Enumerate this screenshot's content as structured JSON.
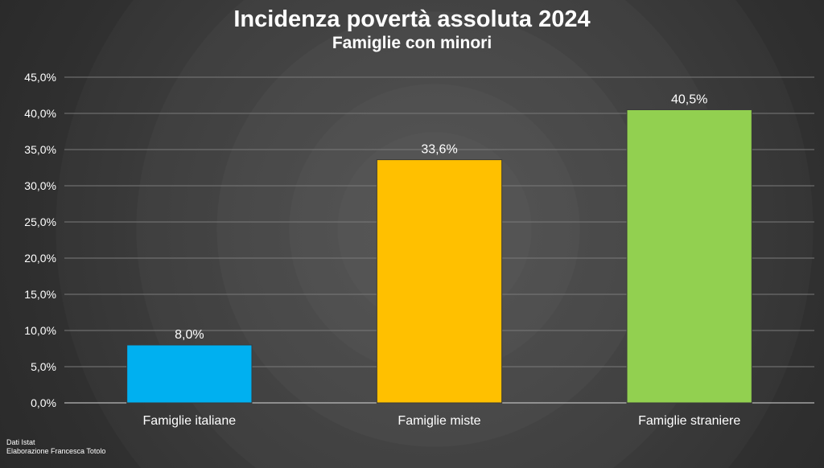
{
  "chart_data": {
    "type": "bar",
    "title": "Incidenza povertà assoluta 2024",
    "subtitle": "Famiglie con minori",
    "categories": [
      "Famiglie italiane",
      "Famiglie miste",
      "Famiglie straniere"
    ],
    "values": [
      8.0,
      33.6,
      40.5
    ],
    "data_labels": [
      "8,0%",
      "33,6%",
      "40,5%"
    ],
    "bar_colors": [
      "#00b0f0",
      "#ffc000",
      "#92d050"
    ],
    "ylim": [
      0,
      45
    ],
    "yticks": [
      0,
      5,
      10,
      15,
      20,
      25,
      30,
      35,
      40,
      45
    ],
    "ytick_labels": [
      "0,0%",
      "5,0%",
      "10,0%",
      "15,0%",
      "20,0%",
      "25,0%",
      "30,0%",
      "35,0%",
      "40,0%",
      "45,0%"
    ],
    "xlabel": "",
    "ylabel": "",
    "grid": true,
    "legend": "none"
  },
  "source": {
    "line1": "Dati Istat",
    "line2": "Elaborazione Francesca Totolo"
  },
  "colors": {
    "text": "#ffffff",
    "gridline": "#7a7a7a"
  }
}
